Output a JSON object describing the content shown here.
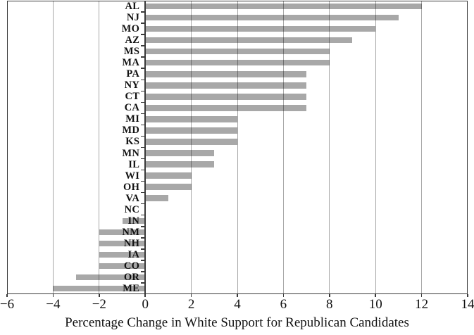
{
  "chart_data": {
    "type": "bar",
    "orientation": "horizontal",
    "title": "",
    "xlabel": "Percentage Change in White Support for Republican Candidates",
    "ylabel": "",
    "categories": [
      "AL",
      "NJ",
      "MO",
      "AZ",
      "MS",
      "MA",
      "PA",
      "NY",
      "CT",
      "CA",
      "MI",
      "MD",
      "KS",
      "MN",
      "IL",
      "WI",
      "OH",
      "VA",
      "NC",
      "IN",
      "NM",
      "NH",
      "IA",
      "CO",
      "OR",
      "ME"
    ],
    "values": [
      12,
      11,
      10,
      9,
      8,
      8,
      7,
      7,
      7,
      7,
      4,
      4,
      4,
      3,
      3,
      2,
      2,
      1,
      0,
      -1,
      -2,
      -2,
      -2,
      -2,
      -3,
      -4
    ],
    "xlim": [
      -6,
      14
    ],
    "xticks": [
      -6,
      -4,
      -2,
      0,
      2,
      4,
      6,
      8,
      10,
      12,
      14
    ],
    "xtick_labels": [
      "−6",
      "−4",
      "−2",
      "0",
      "2",
      "4",
      "6",
      "8",
      "10",
      "12",
      "14"
    ],
    "grid": true,
    "legend": false,
    "bar_color": "#a8a8a8",
    "grid_color": "rgba(0,0,0,0.34)",
    "axis_color": "#3a3a3a",
    "text_color": "#111111",
    "background": "#ffffff"
  }
}
